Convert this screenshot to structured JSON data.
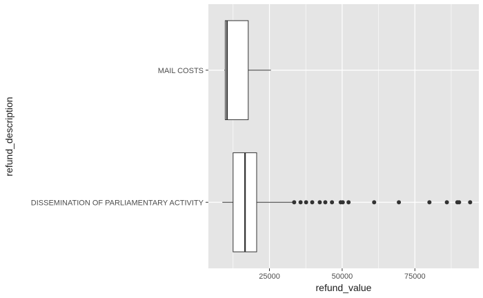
{
  "chart_data": {
    "type": "boxplot",
    "orientation": "horizontal",
    "xlabel": "refund_value",
    "ylabel": "refund_description",
    "xlim": [
      4000,
      97000
    ],
    "x_ticks": [
      25000,
      50000,
      75000
    ],
    "x_tick_labels": [
      "25000",
      "50000",
      "75000"
    ],
    "grid": true,
    "background": "#e5e5e5",
    "categories": [
      "MAIL COSTS",
      "DISSEMINATION OF PARLIAMENTARY ACTIVITY"
    ],
    "boxes": [
      {
        "category": "MAIL COSTS",
        "whisker_low": 9500,
        "q1": 9800,
        "median": 10400,
        "q3": 17700,
        "whisker_high": 25500,
        "outliers": []
      },
      {
        "category": "DISSEMINATION OF PARLIAMENTARY ACTIVITY",
        "whisker_low": 8800,
        "q1": 12500,
        "median": 16600,
        "q3": 20600,
        "whisker_high": 33000,
        "outliers": [
          33500,
          35700,
          37600,
          39700,
          42300,
          44200,
          46500,
          49500,
          50200,
          52200,
          61000,
          69500,
          80000,
          86000,
          89600,
          90200,
          94000
        ]
      }
    ]
  }
}
